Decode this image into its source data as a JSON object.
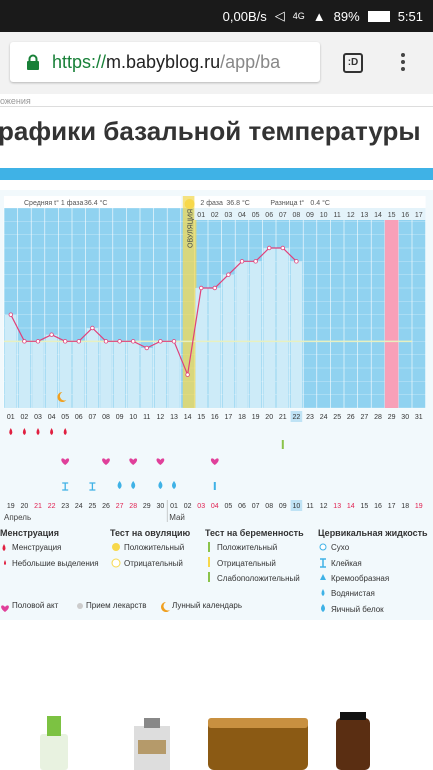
{
  "statusbar": {
    "speed": "0,00B/s",
    "network": "4G",
    "battery": "89%",
    "time": "5:51"
  },
  "browser": {
    "proto": "https://",
    "host": "m.babyblog.ru",
    "path": "/app/ba",
    "tab_label": ":D"
  },
  "page": {
    "breadcrumb": "ожения",
    "title": "рафики базальной температуры"
  },
  "chart_data": {
    "type": "line",
    "header": {
      "phase1_label": "Средняя t° 1 фаза",
      "phase1_value": "36.4 °C",
      "phase2_label": "2 фаза",
      "phase2_value": "36.8 °C",
      "diff_label": "Разница t°",
      "diff_value": "0.4 °C",
      "ovulation_label": "ОВУЛЯЦИЯ"
    },
    "cycle_days": [
      "01",
      "02",
      "03",
      "04",
      "05",
      "06",
      "07",
      "08",
      "09",
      "10",
      "11",
      "12",
      "13",
      "14",
      "15",
      "16",
      "17",
      "18",
      "19",
      "20",
      "21",
      "22",
      "23",
      "24",
      "25",
      "26",
      "27",
      "28",
      "29",
      "30",
      "31"
    ],
    "phase2_days": [
      "01",
      "02",
      "03",
      "04",
      "05",
      "06",
      "07",
      "08",
      "09",
      "10",
      "11",
      "12",
      "13",
      "14",
      "15",
      "16",
      "17"
    ],
    "dates": [
      "19",
      "20",
      "21",
      "22",
      "23",
      "24",
      "25",
      "26",
      "27",
      "28",
      "29",
      "30",
      "01",
      "02",
      "03",
      "04",
      "05",
      "06",
      "07",
      "08",
      "09",
      "10",
      "11",
      "12",
      "13",
      "14",
      "15",
      "16",
      "17",
      "18",
      "19"
    ],
    "date_colors": [
      "#333",
      "#333",
      "#e02050",
      "#e02050",
      "#333",
      "#333",
      "#333",
      "#333",
      "#e02050",
      "#e02050",
      "#333",
      "#333",
      "#333",
      "#333",
      "#e02050",
      "#e02050",
      "#333",
      "#333",
      "#333",
      "#333",
      "#333",
      "#333",
      "#333",
      "#333",
      "#e02050",
      "#e02050",
      "#333",
      "#333",
      "#333",
      "#333",
      "#e02050"
    ],
    "months": [
      "Апрель",
      "Май"
    ],
    "highlight_day_label": "22",
    "highlight_date_label": "10",
    "temperatures": [
      36.5,
      36.3,
      36.3,
      36.35,
      36.3,
      36.3,
      36.4,
      36.3,
      36.3,
      36.3,
      36.25,
      36.3,
      36.3,
      36.05,
      36.7,
      36.7,
      36.8,
      36.9,
      36.9,
      37.0,
      37.0,
      36.9
    ],
    "coverline": 36.3,
    "y_range": [
      35.8,
      37.3
    ],
    "colors": {
      "accent": "#3fb2e6",
      "bar": "#cdebf8",
      "ovulation": "#f7d84b",
      "highlight": "#f8a0b8",
      "line": "#e0407a"
    }
  },
  "legend": {
    "menstruation": {
      "title": "Менструация",
      "items": [
        "Менструация",
        "Небольшие выделения"
      ]
    },
    "ovulation_test": {
      "title": "Тест на овуляцию",
      "items": [
        "Положительный",
        "Отрицательный"
      ]
    },
    "pregnancy_test": {
      "title": "Тест на беременность",
      "items": [
        "Положительный",
        "Отрицательный",
        "Слабоположительный"
      ]
    },
    "cervical": {
      "title": "Цервикальная жидкость",
      "items": [
        "Сухо",
        "Клейкая",
        "Кремообразная",
        "Водянистая",
        "Яичный белок"
      ]
    },
    "bottom": [
      "Половой акт",
      "Прием лекарств",
      "Лунный календарь"
    ]
  }
}
